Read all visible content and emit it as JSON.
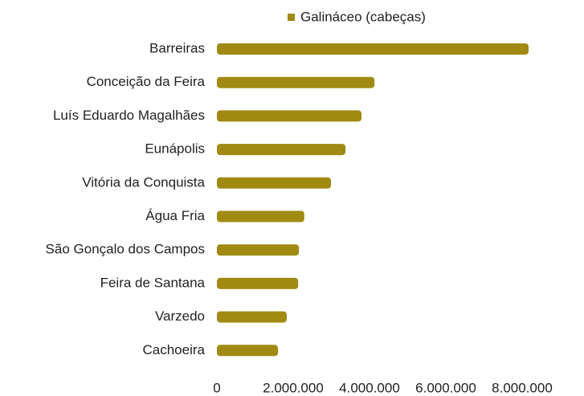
{
  "chart_data": {
    "type": "bar",
    "orientation": "horizontal",
    "categories": [
      "Barreiras",
      "Conceição da Feira",
      "Luís Eduardo Magalhães",
      "Eunápolis",
      "Vitória da Conquista",
      "Água Fria",
      "São Gonçalo dos Campos",
      "Feira de Santana",
      "Varzedo",
      "Cachoeira"
    ],
    "series": [
      {
        "name": "Galináceo (cabeças)",
        "color": "#a08a12",
        "values": [
          8170000,
          4130000,
          3790000,
          3370000,
          2990000,
          2290000,
          2150000,
          2130000,
          1830000,
          1600000
        ]
      }
    ],
    "xlim": [
      0,
      8000000
    ],
    "xticks": [
      0,
      {
        "value": 2000000,
        "label": "2.000.000"
      },
      {
        "value": 4000000,
        "label": "4.000.000"
      },
      {
        "value": 6000000,
        "label": "6.000.000"
      },
      {
        "value": 8000000,
        "label": "8.000.000"
      }
    ],
    "grid": false,
    "legend": "top"
  }
}
